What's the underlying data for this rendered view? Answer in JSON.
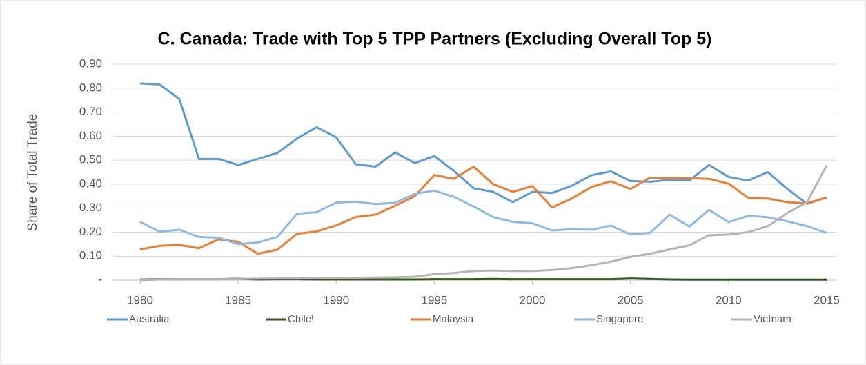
{
  "chart_data": {
    "type": "line",
    "title": "C. Canada: Trade with Top 5 TPP Partners (Excluding Overall Top 5)",
    "y_label": "Share of Total Trade",
    "x": [
      1980,
      1981,
      1982,
      1983,
      1984,
      1985,
      1986,
      1987,
      1988,
      1989,
      1990,
      1991,
      1992,
      1993,
      1994,
      1995,
      1996,
      1997,
      1998,
      1999,
      2000,
      2001,
      2002,
      2003,
      2004,
      2005,
      2006,
      2007,
      2008,
      2009,
      2010,
      2011,
      2012,
      2013,
      2014,
      2015
    ],
    "xlim": [
      1980,
      2015
    ],
    "xticks": [
      1980,
      1985,
      1990,
      1995,
      2000,
      2005,
      2010,
      2015
    ],
    "ylim": [
      0,
      0.9
    ],
    "yticks": [
      {
        "value": 0,
        "label": "-"
      },
      {
        "value": 0.1,
        "label": "0.10"
      },
      {
        "value": 0.2,
        "label": "0.20"
      },
      {
        "value": 0.3,
        "label": "0.30"
      },
      {
        "value": 0.4,
        "label": "0.40"
      },
      {
        "value": 0.5,
        "label": "0.50"
      },
      {
        "value": 0.6,
        "label": "0.60"
      },
      {
        "value": 0.7,
        "label": "0.70"
      },
      {
        "value": 0.8,
        "label": "0.80"
      },
      {
        "value": 0.9,
        "label": "0.90"
      }
    ],
    "grid": true,
    "legend": "bottom",
    "series": [
      {
        "name": "Australia",
        "color": "#5b9bd5",
        "values": [
          0.82,
          0.815,
          0.755,
          0.505,
          0.505,
          0.48,
          0.505,
          0.53,
          0.59,
          0.637,
          0.595,
          0.483,
          0.473,
          0.532,
          0.488,
          0.517,
          0.455,
          0.383,
          0.368,
          0.325,
          0.368,
          0.363,
          0.393,
          0.437,
          0.453,
          0.413,
          0.41,
          0.418,
          0.415,
          0.48,
          0.43,
          0.415,
          0.45,
          0.38,
          0.318,
          0.345
        ]
      },
      {
        "name": "Chileᶠ",
        "color": "#375623",
        "values": [
          0.002,
          0.004,
          0.004,
          0.004,
          0.004,
          0.006,
          0.003,
          0.004,
          0.004,
          0.003,
          0.003,
          0.003,
          0.003,
          0.003,
          0.003,
          0.004,
          0.004,
          0.004,
          0.005,
          0.004,
          0.004,
          0.004,
          0.004,
          0.004,
          0.004,
          0.007,
          0.005,
          0.003,
          0.002,
          0.002,
          0.002,
          0.002,
          0.002,
          0.002,
          0.002,
          0.002
        ]
      },
      {
        "name": "Malaysia",
        "color": "#ed7d31",
        "values": [
          0.128,
          0.143,
          0.147,
          0.133,
          0.17,
          0.16,
          0.11,
          0.127,
          0.193,
          0.203,
          0.228,
          0.263,
          0.273,
          0.31,
          0.35,
          0.438,
          0.422,
          0.473,
          0.4,
          0.368,
          0.392,
          0.303,
          0.34,
          0.388,
          0.412,
          0.38,
          0.427,
          0.425,
          0.425,
          0.422,
          0.402,
          0.343,
          0.34,
          0.325,
          0.32,
          0.345
        ]
      },
      {
        "name": "Singapore",
        "color": "#8db9e3",
        "values": [
          0.243,
          0.202,
          0.21,
          0.18,
          0.177,
          0.15,
          0.157,
          0.18,
          0.277,
          0.283,
          0.323,
          0.327,
          0.317,
          0.322,
          0.36,
          0.373,
          0.347,
          0.307,
          0.263,
          0.243,
          0.237,
          0.207,
          0.212,
          0.21,
          0.227,
          0.19,
          0.197,
          0.273,
          0.223,
          0.293,
          0.242,
          0.268,
          0.262,
          0.245,
          0.225,
          0.197
        ]
      },
      {
        "name": "Vietnam",
        "color": "#b4b4b4",
        "values": [
          0,
          0.003,
          0.004,
          0.004,
          0.004,
          0.005,
          0.006,
          0.007,
          0.007,
          0.008,
          0.009,
          0.01,
          0.011,
          0.012,
          0.014,
          0.025,
          0.03,
          0.038,
          0.04,
          0.038,
          0.038,
          0.042,
          0.05,
          0.062,
          0.077,
          0.097,
          0.11,
          0.128,
          0.145,
          0.187,
          0.19,
          0.2,
          0.225,
          0.28,
          0.325,
          0.478
        ]
      }
    ]
  }
}
